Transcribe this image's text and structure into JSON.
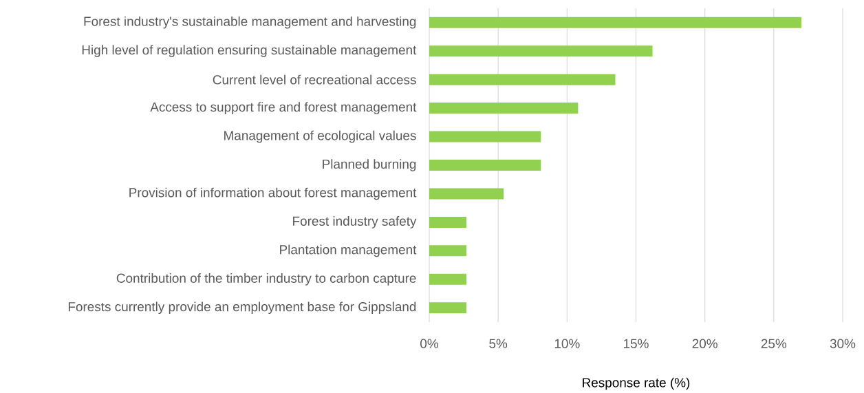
{
  "chart_data": {
    "type": "bar",
    "orientation": "horizontal",
    "xlabel": "Response rate (%)",
    "categories": [
      "Forest industry's sustainable management and harvesting",
      "High level of regulation ensuring sustainable management",
      "Current level of recreational access",
      "Access to support fire and forest management",
      "Management of ecological values",
      "Planned burning",
      "Provision of information about forest management",
      "Forest industry safety",
      "Plantation management",
      "Contribution of the timber industry to carbon capture",
      "Forests currently provide an employment base for Gippsland"
    ],
    "values": [
      27.0,
      16.2,
      13.5,
      10.8,
      8.1,
      8.1,
      5.4,
      2.7,
      2.7,
      2.7,
      2.7
    ],
    "color": "#92d050",
    "xlim": [
      0,
      30
    ],
    "xticks": [
      {
        "value": 0,
        "label": "0%"
      },
      {
        "value": 5,
        "label": "5%"
      },
      {
        "value": 10,
        "label": "10%"
      },
      {
        "value": 15,
        "label": "15%"
      },
      {
        "value": 20,
        "label": "20%"
      },
      {
        "value": 25,
        "label": "25%"
      },
      {
        "value": 30,
        "label": "30%"
      }
    ],
    "grid": "x"
  }
}
